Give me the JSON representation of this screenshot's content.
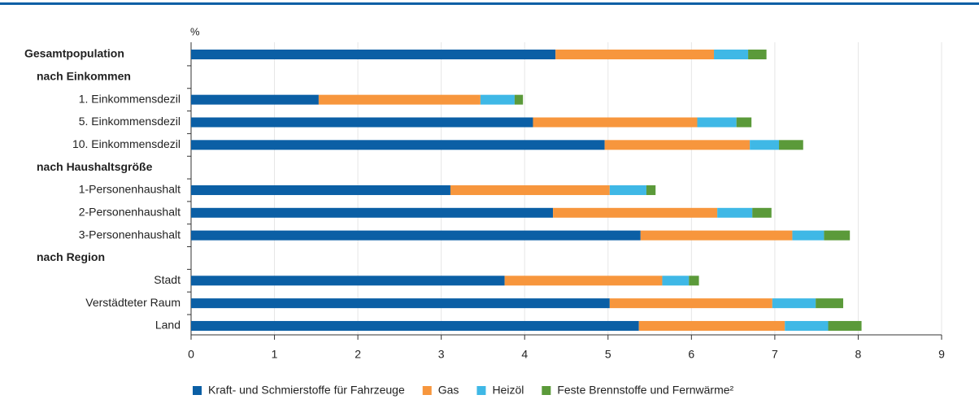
{
  "chart_data": {
    "type": "stacked_barh",
    "axis_unit_label": "%",
    "categories": [
      "Gesamtpopulation",
      "nach Einkommen",
      "1. Einkommensdezil",
      "5. Einkommensdezil",
      "10. Einkommensdezil",
      "nach Haushaltsgröße",
      "1-Personenhaushalt",
      "2-Personenhaushalt",
      "3-Personenhaushalt",
      "nach Region",
      "Stadt",
      "Verstädteter Raum",
      "Land"
    ],
    "series": [
      {
        "name": "Kraft- und Schmierstoffe für Fahrzeuge",
        "color": "#0b5fa5",
        "values": [
          4.37,
          null,
          1.53,
          4.1,
          4.96,
          null,
          3.11,
          4.34,
          5.39,
          null,
          3.76,
          5.02,
          5.37
        ]
      },
      {
        "name": "Gas",
        "color": "#f7963d",
        "values": [
          1.9,
          null,
          1.94,
          1.97,
          1.74,
          null,
          1.91,
          1.97,
          1.82,
          null,
          1.89,
          1.95,
          1.75
        ]
      },
      {
        "name": "Heizöl",
        "color": "#3fb8e6",
        "values": [
          0.41,
          null,
          0.41,
          0.47,
          0.35,
          null,
          0.44,
          0.42,
          0.38,
          null,
          0.32,
          0.52,
          0.52
        ]
      },
      {
        "name": "Feste Brennstoffe und Fernwärme²",
        "color": "#5b9a3a",
        "values": [
          0.22,
          null,
          0.1,
          0.18,
          0.29,
          null,
          0.11,
          0.23,
          0.31,
          null,
          0.12,
          0.33,
          0.4
        ]
      }
    ],
    "xlim": [
      0,
      9
    ],
    "xticks": [
      0,
      1,
      2,
      3,
      4,
      5,
      6,
      7,
      8,
      9
    ],
    "grid": true,
    "legend": "bottom"
  }
}
